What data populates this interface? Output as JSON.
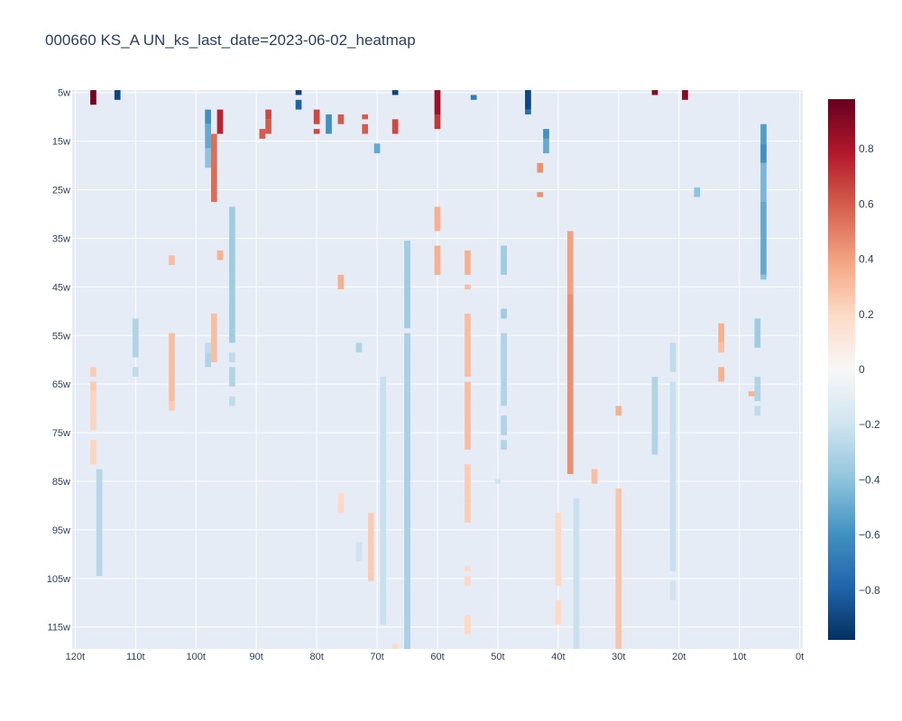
{
  "chart_data": {
    "type": "heatmap",
    "title": "000660 KS_A UN_ks_last_date=2023-06-02_heatmap",
    "x_tick_labels": [
      "120t",
      "110t",
      "100t",
      "90t",
      "80t",
      "70t",
      "60t",
      "50t",
      "40t",
      "30t",
      "20t",
      "10t",
      "0t"
    ],
    "x_tick_values": [
      120,
      110,
      100,
      90,
      80,
      70,
      60,
      50,
      40,
      30,
      20,
      10,
      0
    ],
    "y_tick_labels": [
      "5w",
      "15w",
      "25w",
      "35w",
      "45w",
      "55w",
      "65w",
      "75w",
      "85w",
      "95w",
      "105w",
      "115w"
    ],
    "y_tick_values": [
      5,
      15,
      25,
      35,
      45,
      55,
      65,
      75,
      85,
      95,
      105,
      115
    ],
    "x_range": [
      120.5,
      -0.5
    ],
    "y_range": [
      4.5,
      119.5
    ],
    "colorscale": "RdBu",
    "zmin": -0.98,
    "zmax": 0.98,
    "colorbar_ticks": [
      0.8,
      0.6,
      0.4,
      0.2,
      0,
      -0.2,
      -0.4,
      -0.6,
      -0.8
    ],
    "colorbar_tick_labels": [
      "0.8",
      "0.6",
      "0.4",
      "0.2",
      "0",
      "−0.2",
      "−0.4",
      "−0.6",
      "−0.8"
    ],
    "segments": [
      {
        "x": 117,
        "y0": 5,
        "y1": 7,
        "z": 0.95
      },
      {
        "x": 117,
        "y0": 62,
        "y1": 63,
        "z": 0.25
      },
      {
        "x": 117,
        "y0": 65,
        "y1": 66,
        "z": 0.25
      },
      {
        "x": 117,
        "y0": 67,
        "y1": 74,
        "z": 0.22
      },
      {
        "x": 117,
        "y0": 77,
        "y1": 81,
        "z": 0.22
      },
      {
        "x": 116,
        "y0": 83,
        "y1": 104,
        "z": -0.28
      },
      {
        "x": 113,
        "y0": 5,
        "y1": 6,
        "z": -0.9
      },
      {
        "x": 110,
        "y0": 52,
        "y1": 59,
        "z": -0.3
      },
      {
        "x": 110,
        "y0": 62,
        "y1": 63,
        "z": -0.25
      },
      {
        "x": 104,
        "y0": 39,
        "y1": 40,
        "z": 0.3
      },
      {
        "x": 104,
        "y0": 55,
        "y1": 68,
        "z": 0.3
      },
      {
        "x": 104,
        "y0": 69,
        "y1": 70,
        "z": 0.25
      },
      {
        "x": 98,
        "y0": 9,
        "y1": 11,
        "z": -0.6
      },
      {
        "x": 98,
        "y0": 12,
        "y1": 16,
        "z": -0.5
      },
      {
        "x": 98,
        "y0": 17,
        "y1": 20,
        "z": -0.4
      },
      {
        "x": 98,
        "y0": 57,
        "y1": 58,
        "z": -0.25
      },
      {
        "x": 98,
        "y0": 59,
        "y1": 61,
        "z": -0.3
      },
      {
        "x": 97,
        "y0": 14,
        "y1": 27,
        "z": 0.55
      },
      {
        "x": 97,
        "y0": 51,
        "y1": 60,
        "z": 0.3
      },
      {
        "x": 96,
        "y0": 9,
        "y1": 13,
        "z": 0.75
      },
      {
        "x": 96,
        "y0": 38,
        "y1": 39,
        "z": 0.35
      },
      {
        "x": 94,
        "y0": 29,
        "y1": 56,
        "z": -0.35
      },
      {
        "x": 94,
        "y0": 59,
        "y1": 60,
        "z": -0.25
      },
      {
        "x": 94,
        "y0": 62,
        "y1": 65,
        "z": -0.3
      },
      {
        "x": 94,
        "y0": 68,
        "y1": 69,
        "z": -0.25
      },
      {
        "x": 89,
        "y0": 13,
        "y1": 14,
        "z": 0.6
      },
      {
        "x": 88,
        "y0": 9,
        "y1": 10,
        "z": 0.65
      },
      {
        "x": 88,
        "y0": 11,
        "y1": 13,
        "z": 0.6
      },
      {
        "x": 83,
        "y0": 5,
        "y1": 5,
        "z": -0.9
      },
      {
        "x": 83,
        "y0": 7,
        "y1": 8,
        "z": -0.8
      },
      {
        "x": 80,
        "y0": 9,
        "y1": 11,
        "z": 0.65
      },
      {
        "x": 80,
        "y0": 13,
        "y1": 13,
        "z": 0.65
      },
      {
        "x": 78,
        "y0": 10,
        "y1": 13,
        "z": -0.6
      },
      {
        "x": 76,
        "y0": 10,
        "y1": 11,
        "z": 0.6
      },
      {
        "x": 76,
        "y0": 43,
        "y1": 45,
        "z": 0.35
      },
      {
        "x": 76,
        "y0": 88,
        "y1": 91,
        "z": 0.2
      },
      {
        "x": 73,
        "y0": 57,
        "y1": 58,
        "z": -0.3
      },
      {
        "x": 73,
        "y0": 98,
        "y1": 101,
        "z": -0.2
      },
      {
        "x": 72,
        "y0": 10,
        "y1": 10,
        "z": 0.6
      },
      {
        "x": 72,
        "y0": 12,
        "y1": 13,
        "z": 0.6
      },
      {
        "x": 71,
        "y0": 92,
        "y1": 103,
        "z": 0.25
      },
      {
        "x": 71,
        "y0": 104,
        "y1": 105,
        "z": 0.25
      },
      {
        "x": 70,
        "y0": 16,
        "y1": 17,
        "z": -0.5
      },
      {
        "x": 69,
        "y0": 64,
        "y1": 114,
        "z": -0.22
      },
      {
        "x": 67,
        "y0": 5,
        "y1": 5,
        "z": -0.9
      },
      {
        "x": 67,
        "y0": 11,
        "y1": 13,
        "z": 0.65
      },
      {
        "x": 67,
        "y0": 119,
        "y1": 119,
        "z": 0.2
      },
      {
        "x": 65,
        "y0": 36,
        "y1": 53,
        "z": -0.35
      },
      {
        "x": 65,
        "y0": 55,
        "y1": 119,
        "z": -0.32
      },
      {
        "x": 60,
        "y0": 5,
        "y1": 9,
        "z": 0.85
      },
      {
        "x": 60,
        "y0": 10,
        "y1": 12,
        "z": 0.7
      },
      {
        "x": 60,
        "y0": 29,
        "y1": 33,
        "z": 0.35
      },
      {
        "x": 60,
        "y0": 37,
        "y1": 42,
        "z": 0.35
      },
      {
        "x": 55,
        "y0": 38,
        "y1": 42,
        "z": 0.35
      },
      {
        "x": 55,
        "y0": 45,
        "y1": 45,
        "z": 0.3
      },
      {
        "x": 55,
        "y0": 51,
        "y1": 63,
        "z": 0.3
      },
      {
        "x": 55,
        "y0": 65,
        "y1": 69,
        "z": 0.3
      },
      {
        "x": 55,
        "y0": 70,
        "y1": 78,
        "z": 0.3
      },
      {
        "x": 55,
        "y0": 82,
        "y1": 83,
        "z": 0.25
      },
      {
        "x": 55,
        "y0": 84,
        "y1": 89,
        "z": 0.25
      },
      {
        "x": 55,
        "y0": 90,
        "y1": 93,
        "z": 0.25
      },
      {
        "x": 55,
        "y0": 103,
        "y1": 103,
        "z": 0.2
      },
      {
        "x": 55,
        "y0": 105,
        "y1": 106,
        "z": 0.2
      },
      {
        "x": 55,
        "y0": 113,
        "y1": 116,
        "z": 0.2
      },
      {
        "x": 54,
        "y0": 6,
        "y1": 6,
        "z": -0.7
      },
      {
        "x": 50,
        "y0": 85,
        "y1": 85,
        "z": -0.2
      },
      {
        "x": 49,
        "y0": 37,
        "y1": 42,
        "z": -0.35
      },
      {
        "x": 49,
        "y0": 50,
        "y1": 51,
        "z": -0.35
      },
      {
        "x": 49,
        "y0": 55,
        "y1": 69,
        "z": -0.3
      },
      {
        "x": 49,
        "y0": 72,
        "y1": 75,
        "z": -0.3
      },
      {
        "x": 49,
        "y0": 77,
        "y1": 78,
        "z": -0.3
      },
      {
        "x": 45,
        "y0": 5,
        "y1": 8,
        "z": -0.9
      },
      {
        "x": 45,
        "y0": 9,
        "y1": 9,
        "z": -0.75
      },
      {
        "x": 43,
        "y0": 20,
        "y1": 21,
        "z": 0.45
      },
      {
        "x": 43,
        "y0": 26,
        "y1": 26,
        "z": 0.45
      },
      {
        "x": 42,
        "y0": 13,
        "y1": 14,
        "z": -0.6
      },
      {
        "x": 42,
        "y0": 15,
        "y1": 17,
        "z": -0.5
      },
      {
        "x": 40,
        "y0": 92,
        "y1": 106,
        "z": 0.2
      },
      {
        "x": 40,
        "y0": 110,
        "y1": 114,
        "z": 0.2
      },
      {
        "x": 38,
        "y0": 34,
        "y1": 46,
        "z": 0.4
      },
      {
        "x": 38,
        "y0": 47,
        "y1": 83,
        "z": 0.45
      },
      {
        "x": 37,
        "y0": 89,
        "y1": 119,
        "z": -0.22
      },
      {
        "x": 34,
        "y0": 83,
        "y1": 85,
        "z": 0.3
      },
      {
        "x": 30,
        "y0": 70,
        "y1": 71,
        "z": 0.35
      },
      {
        "x": 30,
        "y0": 87,
        "y1": 119,
        "z": 0.28
      },
      {
        "x": 24,
        "y0": 5,
        "y1": 5,
        "z": 0.9
      },
      {
        "x": 24,
        "y0": 64,
        "y1": 79,
        "z": -0.3
      },
      {
        "x": 21,
        "y0": 57,
        "y1": 62,
        "z": -0.25
      },
      {
        "x": 21,
        "y0": 65,
        "y1": 103,
        "z": -0.22
      },
      {
        "x": 21,
        "y0": 106,
        "y1": 109,
        "z": -0.2
      },
      {
        "x": 19,
        "y0": 5,
        "y1": 6,
        "z": 0.9
      },
      {
        "x": 17,
        "y0": 25,
        "y1": 26,
        "z": -0.4
      },
      {
        "x": 13,
        "y0": 53,
        "y1": 56,
        "z": 0.35
      },
      {
        "x": 13,
        "y0": 57,
        "y1": 58,
        "z": 0.3
      },
      {
        "x": 13,
        "y0": 62,
        "y1": 64,
        "z": 0.35
      },
      {
        "x": 8,
        "y0": 67,
        "y1": 67,
        "z": 0.35
      },
      {
        "x": 7,
        "y0": 52,
        "y1": 57,
        "z": -0.35
      },
      {
        "x": 7,
        "y0": 64,
        "y1": 68,
        "z": -0.3
      },
      {
        "x": 7,
        "y0": 70,
        "y1": 71,
        "z": -0.25
      },
      {
        "x": 6,
        "y0": 12,
        "y1": 15,
        "z": -0.55
      },
      {
        "x": 6,
        "y0": 16,
        "y1": 19,
        "z": -0.6
      },
      {
        "x": 6,
        "y0": 20,
        "y1": 27,
        "z": -0.45
      },
      {
        "x": 6,
        "y0": 28,
        "y1": 42,
        "z": -0.5
      },
      {
        "x": 6,
        "y0": 43,
        "y1": 43,
        "z": -0.4
      }
    ]
  }
}
